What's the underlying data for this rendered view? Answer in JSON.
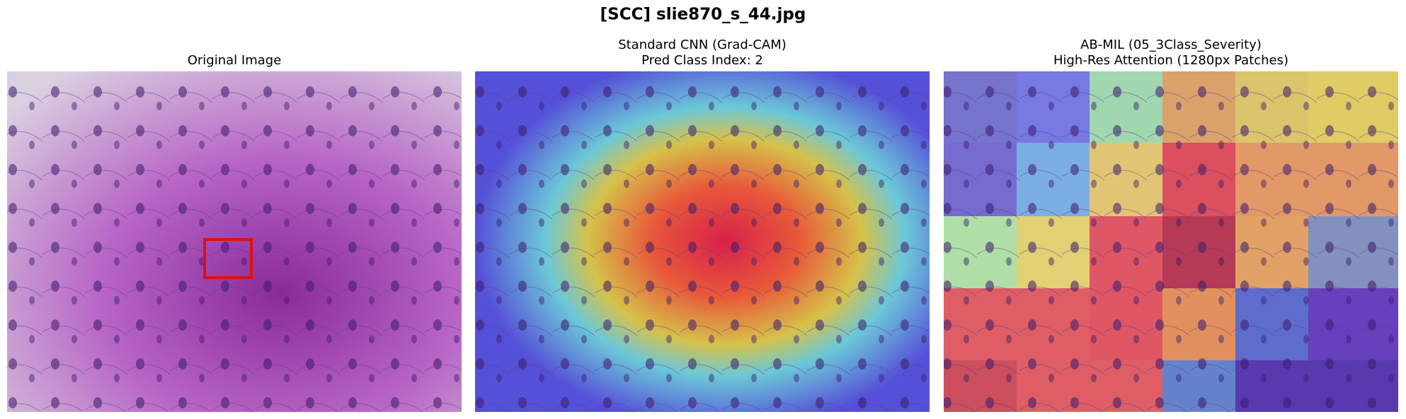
{
  "title": "[SCC]  slie870_s_44.jpg",
  "panels": [
    {
      "title_lines": [
        "Original Image"
      ]
    },
    {
      "title_lines": [
        "Standard CNN (Grad-CAM)",
        "Pred Class Index: 2"
      ]
    },
    {
      "title_lines": [
        "AB-MIL (05_3Class_Severity)",
        "High-Res Attention (1280px Patches)"
      ]
    }
  ]
}
